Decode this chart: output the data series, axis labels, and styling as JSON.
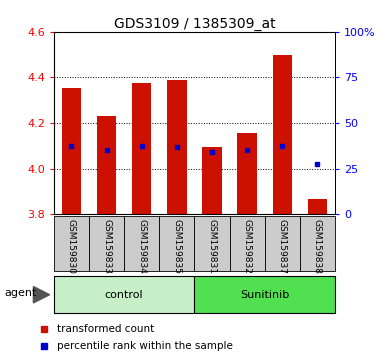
{
  "title": "GDS3109 / 1385309_at",
  "samples": [
    "GSM159830",
    "GSM159833",
    "GSM159834",
    "GSM159835",
    "GSM159831",
    "GSM159832",
    "GSM159837",
    "GSM159838"
  ],
  "bar_tops": [
    4.355,
    4.23,
    4.375,
    4.39,
    4.095,
    4.155,
    4.5,
    3.865
  ],
  "bar_bottom": 3.8,
  "blue_values": [
    4.1,
    4.08,
    4.1,
    4.095,
    4.075,
    4.08,
    4.1,
    4.02
  ],
  "groups": [
    {
      "label": "control",
      "indices": [
        0,
        1,
        2,
        3
      ],
      "color": "#c8f0c8"
    },
    {
      "label": "Sunitinib",
      "indices": [
        4,
        5,
        6,
        7
      ],
      "color": "#50e050"
    }
  ],
  "agent_label": "agent",
  "ylim": [
    3.8,
    4.6
  ],
  "y2lim": [
    0,
    100
  ],
  "yticks": [
    3.8,
    4.0,
    4.2,
    4.4,
    4.6
  ],
  "y2ticks": [
    0,
    25,
    50,
    75,
    100
  ],
  "bar_color": "#cc1100",
  "blue_color": "#0000cc",
  "bar_width": 0.55,
  "legend_red": "transformed count",
  "legend_blue": "percentile rank within the sample"
}
